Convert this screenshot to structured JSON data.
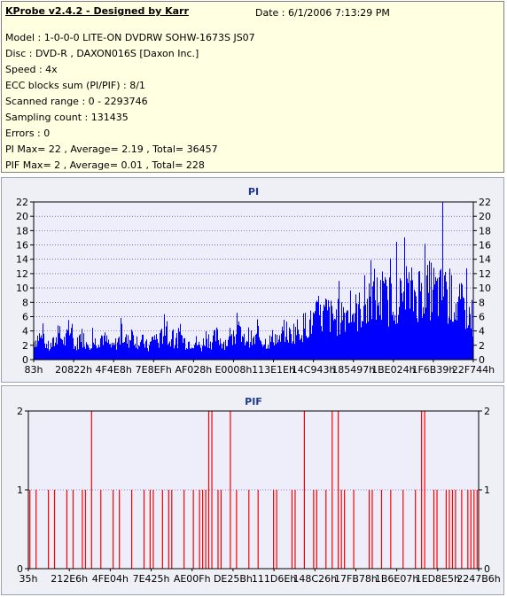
{
  "app": {
    "title": "KProbe v2.4.2 - Designed by Karr",
    "date": "Date : 6/1/2006 7:13:29 PM"
  },
  "info": [
    "Model : 1-0-0-0 LITE-ON DVDRW SOHW-1673S JS07",
    "Disc : DVD-R , DAXON016S [Daxon Inc.]",
    "Speed : 4x",
    "ECC blocks sum (PI/PIF) : 8/1",
    "Scanned range : 0 - 2293746",
    "Sampling count : 131435",
    "Errors : 0",
    "PI Max= 22 , Average= 2.19 , Total= 36457",
    "PIF Max= 2 , Average= 0.01 , Total= 228"
  ],
  "colors": {
    "pi_bars": "#0000ff",
    "pif_bars": "#ff0000",
    "plot_bg": "#eeeefa",
    "grid": "#2020a0",
    "title": "#1f3b8c"
  },
  "chart_data": [
    {
      "type": "bar",
      "title": "PI",
      "ylim": [
        0,
        22
      ],
      "yticks": [
        0,
        2,
        4,
        6,
        8,
        10,
        12,
        14,
        16,
        18,
        20,
        22
      ],
      "xtick_labels": [
        "83h",
        "20822h",
        "4F4E8h",
        "7E8EFh",
        "AF028h",
        "E0008h",
        "113E1Eh",
        "14C943h",
        "185497h",
        "1BE024h",
        "1F6B39h",
        "22F744h"
      ],
      "grid": true,
      "right_axis": true,
      "peak_max": 22,
      "series": [
        {
          "values": [
            3,
            4,
            3,
            2,
            3,
            4,
            3,
            5,
            2,
            4,
            3,
            3,
            3,
            4,
            3,
            2,
            3,
            4,
            3,
            4,
            3,
            3,
            2,
            4,
            3,
            5,
            3,
            3,
            4,
            3,
            3,
            3,
            2,
            4,
            3,
            4,
            3,
            3,
            3,
            5,
            3,
            4,
            3,
            4,
            3,
            3,
            4,
            3,
            5,
            4,
            5,
            5,
            6,
            6,
            7,
            7,
            8,
            7,
            7,
            8,
            8,
            8,
            8,
            9,
            9,
            11,
            10,
            10,
            10,
            11,
            10,
            11,
            11,
            11,
            12,
            11,
            12,
            11,
            11,
            10,
            10,
            9,
            9,
            8,
            7
          ]
        }
      ]
    },
    {
      "type": "bar",
      "title": "PIF",
      "ylim": [
        0,
        2
      ],
      "yticks": [
        0,
        1,
        2
      ],
      "xtick_labels": [
        "35h",
        "212E6h",
        "4FE04h",
        "7E425h",
        "AE00Fh",
        "DE25Bh",
        "111D6Eh",
        "148C26h",
        "17FB78h",
        "1B6E07h",
        "1ED8E5h",
        "2247B6h"
      ],
      "grid": true,
      "right_axis": true,
      "series": [
        {
          "values": [
            1,
            0,
            1,
            0,
            0,
            0,
            1,
            0,
            1,
            0,
            0,
            0,
            1,
            0,
            1,
            0,
            0,
            1,
            1,
            0,
            2,
            0,
            0,
            1,
            0,
            0,
            0,
            1,
            0,
            1,
            0,
            0,
            0,
            1,
            0,
            0,
            0,
            1,
            0,
            1,
            1,
            0,
            0,
            1,
            0,
            1,
            1,
            0,
            0,
            0,
            1,
            0,
            0,
            1,
            0,
            1,
            1,
            1,
            2,
            2,
            0,
            1,
            1,
            0,
            0,
            2,
            0,
            1,
            0,
            0,
            0,
            1,
            0,
            0,
            1,
            0,
            0,
            0,
            0,
            1,
            1,
            0,
            0,
            0,
            0,
            1,
            1,
            0,
            0,
            2,
            0,
            0,
            1,
            1,
            0,
            0,
            1,
            0,
            2,
            0,
            2,
            1,
            1,
            0,
            0,
            1,
            0,
            0,
            0,
            0,
            1,
            1,
            0,
            0,
            1,
            0,
            0,
            1,
            0,
            0,
            0,
            1,
            0,
            0,
            0,
            1,
            0,
            2,
            2,
            0,
            0,
            1,
            1,
            0,
            0,
            1,
            1,
            1,
            1,
            0,
            1,
            0,
            1,
            1,
            1,
            1
          ]
        }
      ]
    }
  ]
}
